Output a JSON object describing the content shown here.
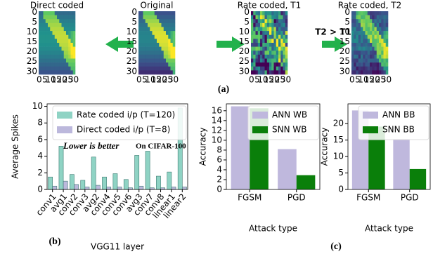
{
  "panel_a": {
    "label": "(a)",
    "arrow_label": "T2 > T1",
    "ticks": [
      0,
      5,
      10,
      15,
      20,
      25,
      30
    ],
    "images": [
      {
        "title": "Direct coded"
      },
      {
        "title": "Original"
      },
      {
        "title": "Rate coded, T1"
      },
      {
        "title": "Rate coded, T2"
      }
    ]
  },
  "panel_c_label": "(c)",
  "chart_data": [
    {
      "type": "bar",
      "label": "(b)",
      "xlabel": "VGG11 layer",
      "ylabel": "Average Spikes",
      "categories": [
        "conv1",
        "avg1",
        "conv2",
        "conv3",
        "avg2",
        "conv4",
        "conv5",
        "conv6",
        "avg3",
        "conv7",
        "conv8",
        "linear1",
        "linear2"
      ],
      "series": [
        {
          "name": "Rate coded i/p (T=120)",
          "color": "#8fd3c4",
          "values": [
            1.5,
            5.2,
            1.8,
            1.1,
            3.9,
            1.5,
            1.9,
            1.2,
            4.1,
            4.6,
            1.6,
            2.1,
            9.8
          ]
        },
        {
          "name": "Direct coded i/p (T=8)",
          "color": "#bcb8dc",
          "values": [
            0.4,
            1.0,
            0.6,
            0.3,
            0.5,
            0.3,
            0.3,
            0.2,
            0.4,
            0.2,
            0.2,
            0.3,
            0.3
          ]
        }
      ],
      "ylim": [
        0,
        10.3
      ],
      "yticks": [
        0,
        2,
        4,
        6,
        8,
        10
      ],
      "legend": "upper right",
      "annotations": [
        {
          "text": "Lower is better"
        },
        {
          "text": "On CIFAR-100"
        }
      ]
    },
    {
      "type": "bar",
      "xlabel": "Attack type",
      "ylabel": "Accuracy",
      "categories": [
        "FGSM",
        "PGD"
      ],
      "series": [
        {
          "name": "ANN WB",
          "color": "#bfb8dd",
          "values": [
            16.9,
            8.2
          ]
        },
        {
          "name": "SNN WB",
          "color": "#0a7f0a",
          "values": [
            16.5,
            2.9
          ]
        }
      ],
      "ylim": [
        0,
        17.4
      ],
      "yticks": [
        0,
        2,
        4,
        6,
        8,
        10,
        12,
        14,
        16
      ],
      "legend": "upper right"
    },
    {
      "type": "bar",
      "xlabel": "Attack type",
      "ylabel": "Accuracy",
      "categories": [
        "FGSM",
        "PGD"
      ],
      "series": [
        {
          "name": "ANN BB",
          "color": "#bfb8dd",
          "values": [
            24.0,
            15.3
          ]
        },
        {
          "name": "SNN BB",
          "color": "#0a7f0a",
          "values": [
            19.1,
            6.2
          ]
        }
      ],
      "ylim": [
        0,
        26
      ],
      "yticks": [
        0,
        5,
        10,
        15,
        20
      ],
      "legend": "upper right"
    }
  ]
}
